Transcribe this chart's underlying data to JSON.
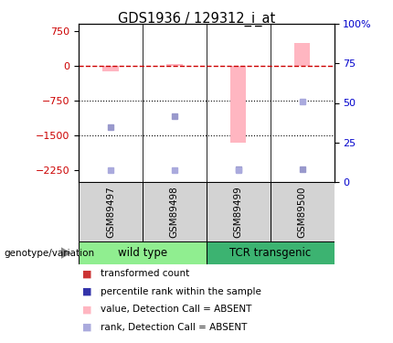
{
  "title": "GDS1936 / 129312_i_at",
  "samples": [
    "GSM89497",
    "GSM89498",
    "GSM89499",
    "GSM89500"
  ],
  "groups": [
    {
      "name": "wild type",
      "samples": [
        "GSM89497",
        "GSM89498"
      ],
      "color": "#90EE90"
    },
    {
      "name": "TCR transgenic",
      "samples": [
        "GSM89499",
        "GSM89500"
      ],
      "color": "#3CB371"
    }
  ],
  "bar_values": [
    -120,
    30,
    -1650,
    500
  ],
  "bar_color": "#FFB6C1",
  "dot_values": [
    -1320,
    -1080,
    -2230,
    -2230
  ],
  "dot_color": "#9999CC",
  "rank_dot_values": [
    -2250,
    -2250,
    -2250,
    -780
  ],
  "rank_dot_color": "#AAAADD",
  "ylim_left": [
    -2500,
    900
  ],
  "ylim_right": [
    0,
    100
  ],
  "yticks_left": [
    -2250,
    -1500,
    -750,
    0,
    750
  ],
  "yticks_right": [
    0,
    25,
    50,
    75,
    100
  ],
  "hline_y": 0,
  "hline_color": "#CC0000",
  "dotted_lines": [
    -750,
    -1500
  ],
  "background_color": "#ffffff",
  "plot_bg_color": "#ffffff",
  "legend_items": [
    {
      "label": "transformed count",
      "color": "#CC3333"
    },
    {
      "label": "percentile rank within the sample",
      "color": "#3333AA"
    },
    {
      "label": "value, Detection Call = ABSENT",
      "color": "#FFB6C1"
    },
    {
      "label": "rank, Detection Call = ABSENT",
      "color": "#AAAADD"
    }
  ],
  "genotype_label": "genotype/variation",
  "left_axis_color": "#CC0000",
  "right_axis_color": "#0000CC",
  "bar_width": 0.25
}
